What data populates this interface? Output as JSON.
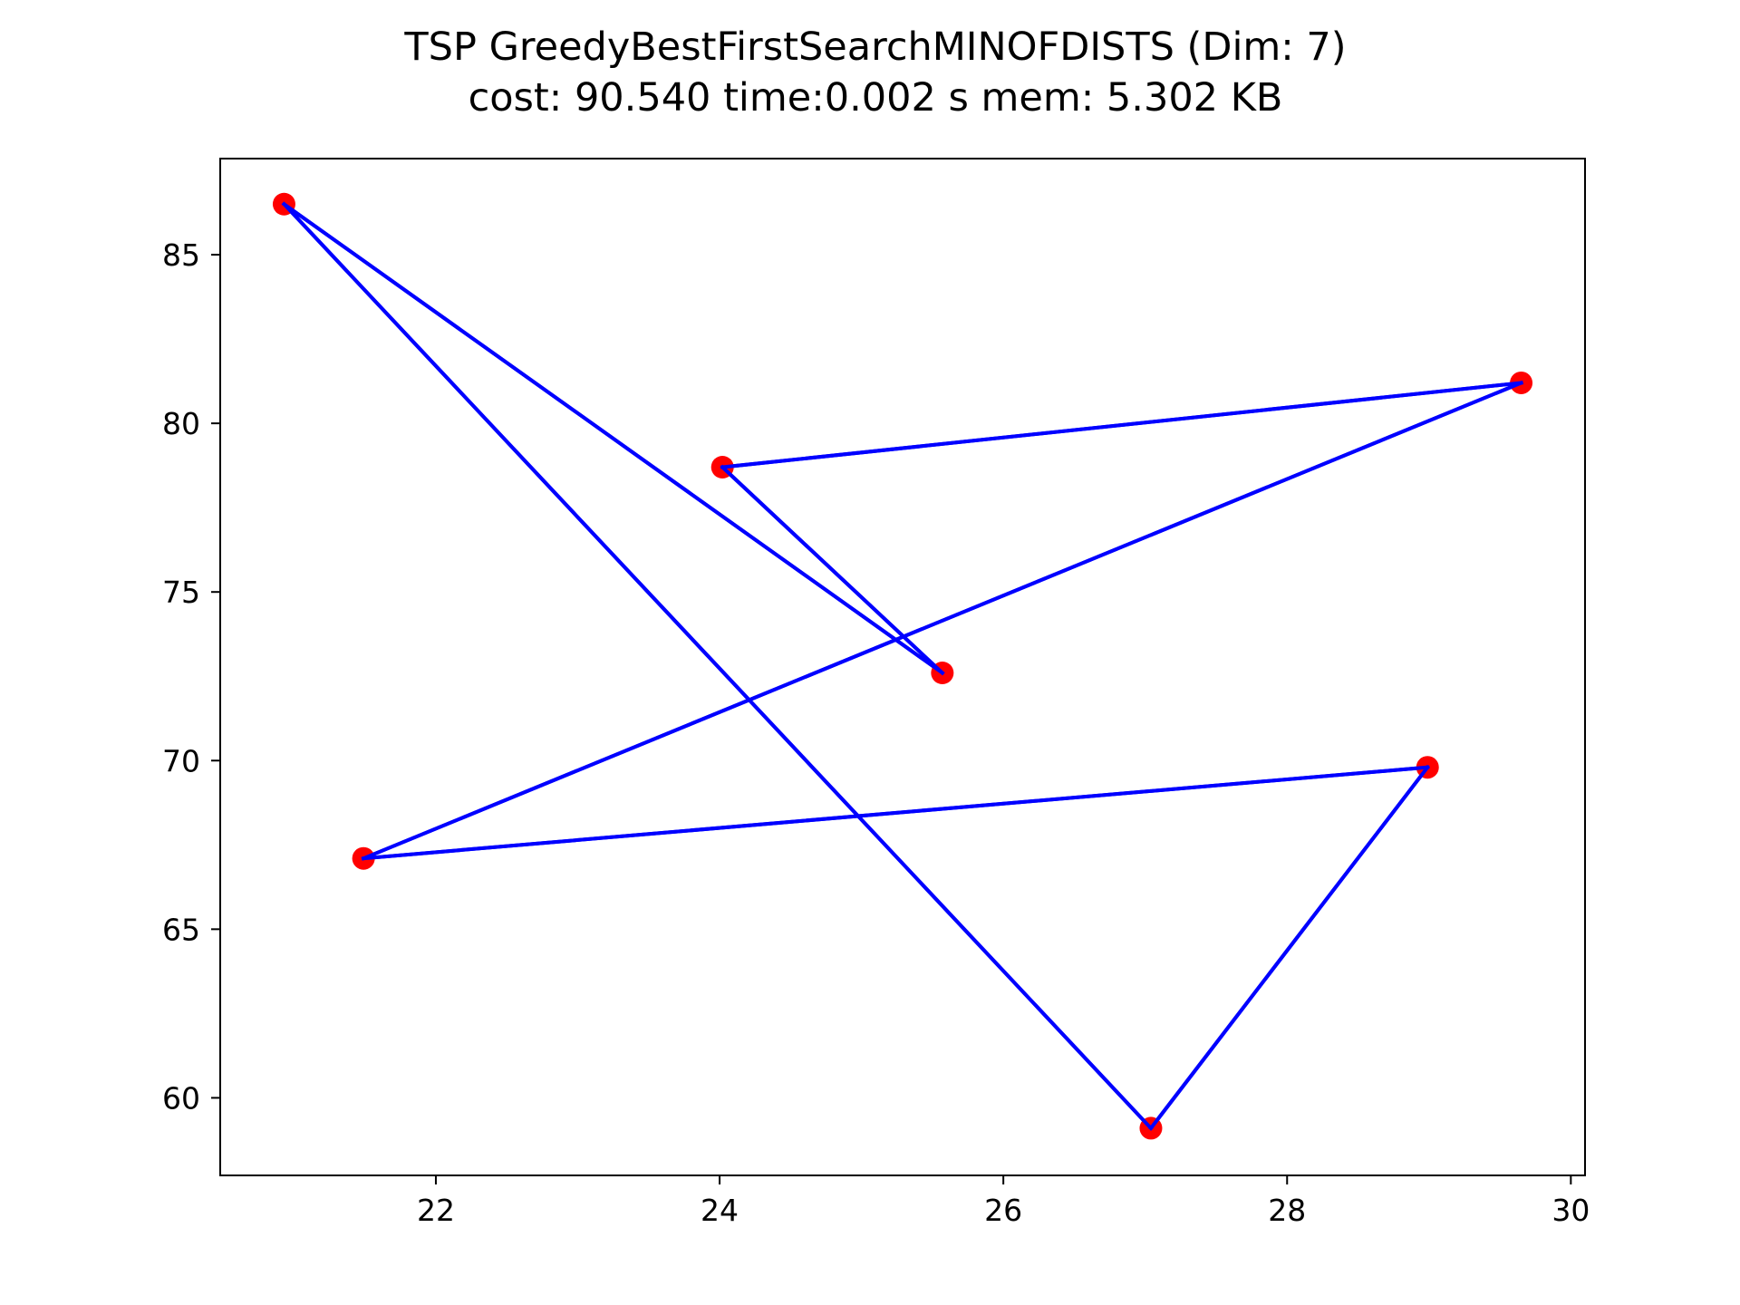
{
  "chart_data": {
    "type": "line",
    "title": "TSP GreedyBestFirstSearchMINOFDISTS (Dim: 7)",
    "subtitle": "cost: 90.540   time:0.002 s   mem: 5.302 KB",
    "xlabel": "",
    "ylabel": "",
    "xlim": [
      20.48,
      30.1
    ],
    "ylim": [
      57.7,
      87.85
    ],
    "xticks": [
      22,
      24,
      26,
      28,
      30
    ],
    "yticks": [
      60,
      65,
      70,
      75,
      80,
      85
    ],
    "grid": false,
    "legend": "none",
    "series": [
      {
        "values": [],
        "points": [
          {
            "x": 20.93,
            "y": 86.5
          },
          {
            "x": 25.57,
            "y": 72.6
          },
          {
            "x": 24.02,
            "y": 78.7
          },
          {
            "x": 29.65,
            "y": 81.2
          },
          {
            "x": 21.49,
            "y": 67.1
          },
          {
            "x": 28.99,
            "y": 69.8
          },
          {
            "x": 27.04,
            "y": 59.1
          },
          {
            "x": 20.93,
            "y": 86.5
          }
        ],
        "line_color": "#0000ff",
        "marker_color": "#ff0000"
      }
    ]
  }
}
